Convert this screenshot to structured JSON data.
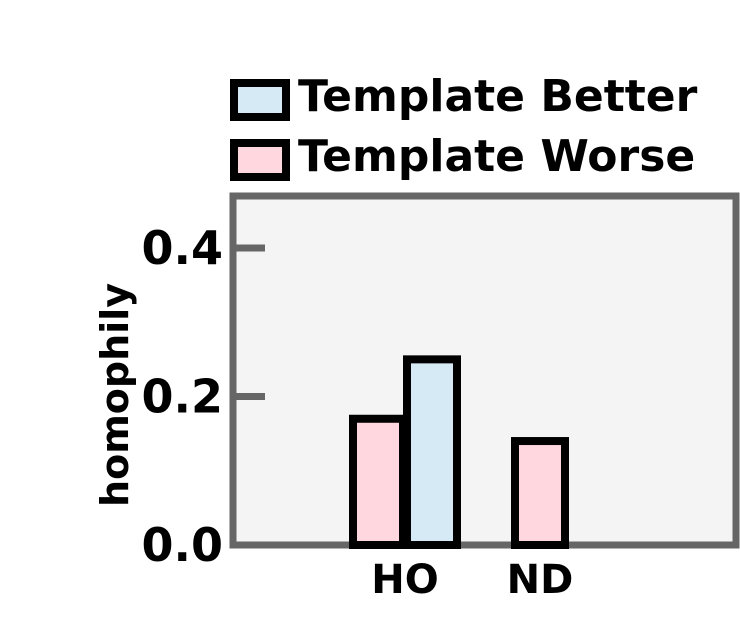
{
  "chart_data": {
    "type": "bar",
    "categories": [
      "HO",
      "ND"
    ],
    "series": [
      {
        "name": "Template Worse",
        "values": [
          0.17,
          0.14
        ]
      },
      {
        "name": "Template Better",
        "values": [
          0.25,
          null
        ]
      }
    ],
    "title": "",
    "xlabel": "",
    "ylabel": "homophily",
    "ylim": [
      0,
      0.47
    ],
    "yticks": [
      0.0,
      0.2,
      0.4
    ],
    "ytick_labels": [
      "0.0",
      "0.2",
      "0.4"
    ],
    "grid": false,
    "legend": {
      "placement": "top-outside",
      "entries": [
        "Template Better",
        "Template Worse"
      ]
    },
    "colors": {
      "Template Better": "#d6eaf5",
      "Template Worse": "#ffd8df",
      "axes_background": "#f4f4f4",
      "frame": "#666666",
      "bar_edge": "#000000"
    }
  }
}
